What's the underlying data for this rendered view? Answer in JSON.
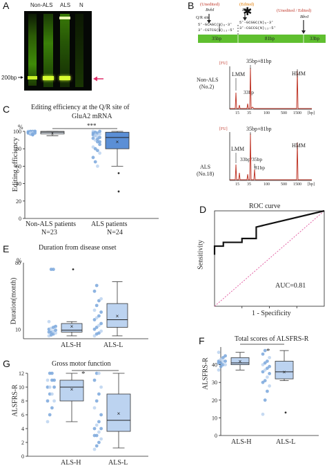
{
  "panels": {
    "A": {
      "label": "A",
      "lanes": [
        "Non-ALS",
        "ALS",
        "N"
      ],
      "marker": "200bp"
    },
    "B": {
      "label": "B",
      "site_unedited_left": "(Unedited)",
      "site_enzyme_left": "BvbI",
      "site_edited": "(Edited)",
      "site_enzyme_mid": "BbvI",
      "site_unedited_right": "(Unedited / Edited)",
      "site_enzyme_right": "BbvI",
      "qr_site": "Q/R site",
      "seq_top": "5'-GCAGC(N)₈-3'",
      "seq_bottom": "3'-CGTCG(N)₁₂-5'",
      "seq_top_r": "5'-GCGGC(N)₈-3'",
      "seq_bottom_r": "3'-CGCCG(N)₁₂-5'",
      "segments": [
        "35bp",
        "81bp",
        "33bp"
      ],
      "trace1": {
        "unit": "[FU]",
        "sample": "Non-ALS",
        "sample_id": "(No.2)",
        "peaks": [
          "LMM",
          "35bp+81bp",
          "33bp",
          "HMM"
        ],
        "xticks": [
          "15",
          "35",
          "100",
          "500",
          "1500"
        ],
        "xunit": "[bp]"
      },
      "trace2": {
        "unit": "[FU]",
        "sample": "ALS",
        "sample_id": "(No.18)",
        "peaks": [
          "LMM",
          "35bp+81bp",
          "33bp/35bp",
          "81bp",
          "HMM"
        ],
        "xticks": [
          "15",
          "35",
          "100",
          "500",
          "1500"
        ],
        "xunit": "[bp]"
      }
    },
    "C": {
      "label": "C",
      "title_line1": "Editing efficiency at the Q/R site of",
      "title_line2": "GluA2 mRNA",
      "ylabel": "Editing efficiency",
      "yunit": "%",
      "significance": "***",
      "groups": [
        "Non-ALS patients",
        "ALS patients"
      ],
      "counts": [
        "N=23",
        "N=24"
      ]
    },
    "D": {
      "label": "D",
      "title": "ROC curve",
      "ylabel": "Sensitivity",
      "xlabel": "1 - Specificity",
      "auc": "AUC=0.81"
    },
    "E": {
      "label": "E",
      "title": "Duration from disease onset",
      "yunit": "%",
      "ylabel": "Duration(month)",
      "groups": [
        "ALS-H",
        "ALS-L"
      ]
    },
    "F": {
      "label": "F",
      "title": "Total scores of ALSFRS-R",
      "ylabel": "ALSFRS-R",
      "significance": "*",
      "groups": [
        "ALS-H",
        "ALS-L"
      ]
    },
    "G": {
      "label": "G",
      "title": "Gross motor function",
      "ylabel": "ALSFRS-R",
      "significance": "*",
      "groups": [
        "ALS-H",
        "ALS-L"
      ]
    }
  },
  "colors": {
    "box_fill": "#5b8fd6",
    "box_fill_light": "#bcd3f0",
    "point": "#7aa7dc",
    "trace": "#c0392b",
    "roc_diag": "#e0509a",
    "gel_band": "#d8ff30",
    "green_bar": "#5fbf2f"
  },
  "chart_data": [
    {
      "panel": "C",
      "type": "box",
      "groups": [
        "Non-ALS patients",
        "ALS patients"
      ],
      "ylim": [
        0,
        100
      ],
      "yticks": [
        0,
        20,
        40,
        60,
        80,
        100
      ],
      "box": [
        {
          "name": "Non-ALS patients",
          "q1": 97,
          "median": 99,
          "q3": 100,
          "min": 95,
          "max": 100,
          "mean": 98
        },
        {
          "name": "ALS patients",
          "q1": 80,
          "median": 93,
          "q3": 99,
          "min": 60,
          "max": 100,
          "mean": 88,
          "outliers": [
            52,
            31
          ]
        }
      ]
    },
    {
      "panel": "D",
      "type": "line",
      "xlim": [
        0,
        1
      ],
      "ylim": [
        0,
        1
      ],
      "x": [
        0,
        0,
        0.08,
        0.08,
        0.25,
        0.25,
        0.38,
        0.38,
        1.0
      ],
      "y": [
        0.54,
        0.63,
        0.63,
        0.67,
        0.67,
        0.71,
        0.71,
        0.83,
        1.0
      ]
    },
    {
      "panel": "E",
      "type": "box",
      "groups": [
        "ALS-H",
        "ALS-L"
      ],
      "ylim": [
        0,
        80
      ],
      "box": [
        {
          "name": "ALS-H",
          "q1": 7,
          "median": 9,
          "q3": 16,
          "min": 3,
          "max": 18,
          "mean": 13,
          "outliers": [
            73
          ]
        },
        {
          "name": "ALS-L",
          "q1": 12,
          "median": 20,
          "q3": 37,
          "min": 3,
          "max": 60,
          "mean": 24
        }
      ]
    },
    {
      "panel": "F",
      "type": "box",
      "groups": [
        "ALS-H",
        "ALS-L"
      ],
      "ylim": [
        0,
        50
      ],
      "yticks": [
        0,
        10,
        20,
        30,
        40
      ],
      "box": [
        {
          "name": "ALS-H",
          "q1": 40,
          "median": 41,
          "q3": 44,
          "min": 37,
          "max": 47,
          "mean": 42
        },
        {
          "name": "ALS-L",
          "q1": 32,
          "median": 36,
          "q3": 42,
          "min": 31,
          "max": 48,
          "mean": 36,
          "outliers": [
            13
          ]
        }
      ]
    },
    {
      "panel": "G",
      "type": "box",
      "groups": [
        "ALS-H",
        "ALS-L"
      ],
      "ylim": [
        0,
        12
      ],
      "yticks": [
        0,
        2,
        4,
        6,
        8,
        10,
        12
      ],
      "box": [
        {
          "name": "ALS-H",
          "q1": 8,
          "median": 10,
          "q3": 11,
          "min": 5,
          "max": 12,
          "mean": 9.7
        },
        {
          "name": "ALS-L",
          "q1": 3.6,
          "median": 5.2,
          "q3": 9,
          "min": 1.2,
          "max": 12,
          "mean": 6.2
        }
      ]
    }
  ]
}
